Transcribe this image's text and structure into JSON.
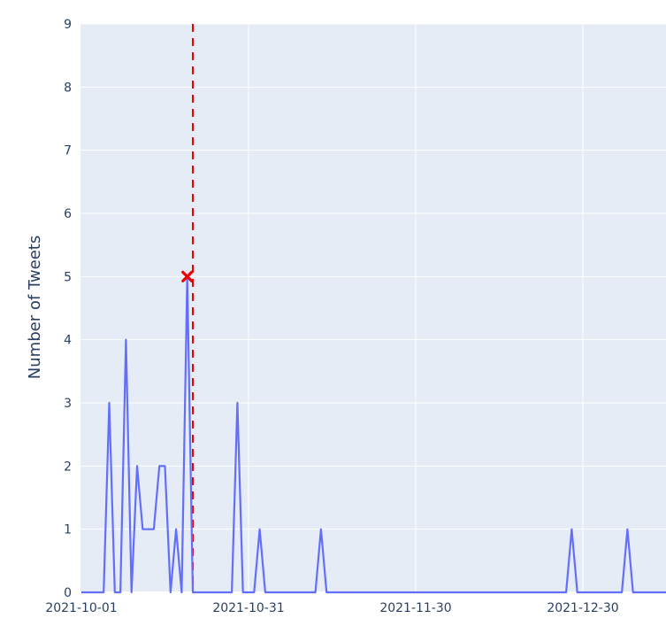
{
  "chart_data": {
    "type": "line",
    "title": "",
    "xlabel": "",
    "ylabel": "Number of Tweets",
    "x_tick_labels": [
      "2021-10-01",
      "2021-10-31",
      "2021-11-30",
      "2021-12-30"
    ],
    "y_tick_labels": [
      "0",
      "1",
      "2",
      "3",
      "4",
      "5",
      "6",
      "7",
      "8",
      "9"
    ],
    "ylim": [
      0,
      9
    ],
    "xlim": [
      "2021-10-01",
      "2022-01-08"
    ],
    "grid": true,
    "plot_background": "#e5ecf6",
    "series": [
      {
        "color": "#636efa",
        "points": [
          [
            "2021-10-01",
            0
          ],
          [
            "2021-10-05",
            0
          ],
          [
            "2021-10-06",
            3
          ],
          [
            "2021-10-07",
            0
          ],
          [
            "2021-10-08",
            0
          ],
          [
            "2021-10-09",
            4
          ],
          [
            "2021-10-10",
            0
          ],
          [
            "2021-10-11",
            2
          ],
          [
            "2021-10-12",
            1
          ],
          [
            "2021-10-13",
            1
          ],
          [
            "2021-10-14",
            1
          ],
          [
            "2021-10-15",
            2
          ],
          [
            "2021-10-16",
            2
          ],
          [
            "2021-10-17",
            0
          ],
          [
            "2021-10-18",
            1
          ],
          [
            "2021-10-19",
            0
          ],
          [
            "2021-10-20",
            5
          ],
          [
            "2021-10-21",
            0
          ],
          [
            "2021-10-28",
            0
          ],
          [
            "2021-10-29",
            3
          ],
          [
            "2021-10-30",
            0
          ],
          [
            "2021-11-01",
            0
          ],
          [
            "2021-11-02",
            1
          ],
          [
            "2021-11-03",
            0
          ],
          [
            "2021-11-12",
            0
          ],
          [
            "2021-11-13",
            1
          ],
          [
            "2021-11-14",
            0
          ],
          [
            "2021-12-27",
            0
          ],
          [
            "2021-12-28",
            1
          ],
          [
            "2021-12-29",
            0
          ],
          [
            "2022-01-06",
            0
          ],
          [
            "2022-01-07",
            1
          ],
          [
            "2022-01-08",
            0
          ],
          [
            "2022-01-15",
            0
          ]
        ]
      }
    ],
    "reference_line": {
      "x": "2021-10-21",
      "color": "#ef0000",
      "style": "dashed"
    },
    "highlight_marker": {
      "x": "2021-10-20",
      "y": 5,
      "color": "#ef0000",
      "symbol": "x"
    }
  }
}
